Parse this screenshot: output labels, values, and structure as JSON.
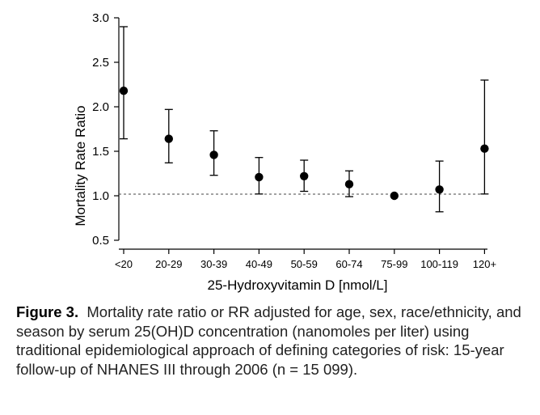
{
  "chart_data": {
    "type": "scatter",
    "subtype": "point-with-error-bars",
    "xlabel": "25-Hydroxyvitamin D [nmol/L]",
    "ylabel": "Mortality Rate Ratio",
    "categories": [
      "<20",
      "20-29",
      "30-39",
      "40-49",
      "50-59",
      "60-74",
      "75-99",
      "100-119",
      "120+"
    ],
    "values": [
      2.18,
      1.64,
      1.46,
      1.21,
      1.22,
      1.13,
      1.0,
      1.07,
      1.53
    ],
    "ci_lower": [
      1.64,
      1.37,
      1.23,
      1.02,
      1.05,
      0.99,
      1.0,
      0.82,
      1.02
    ],
    "ci_upper": [
      2.9,
      1.97,
      1.73,
      1.43,
      1.4,
      1.28,
      1.0,
      1.39,
      2.3
    ],
    "ylim": [
      0.5,
      3.0
    ],
    "yticks": [
      "0.5",
      "1.0",
      "1.5",
      "2.0",
      "2.5",
      "3.0"
    ],
    "reference_line": 1.0,
    "grid": false
  },
  "caption": {
    "label": "Figure 3.",
    "text": "Mortality rate ratio or RR adjusted for age, sex, race/ethnicity, and season by serum 25(OH)D concentration (nanomoles per liter) using traditional epidemiological approach of defining categories of risk: 15-year follow-up of NHANES III through 2006 (n = 15 099)."
  }
}
